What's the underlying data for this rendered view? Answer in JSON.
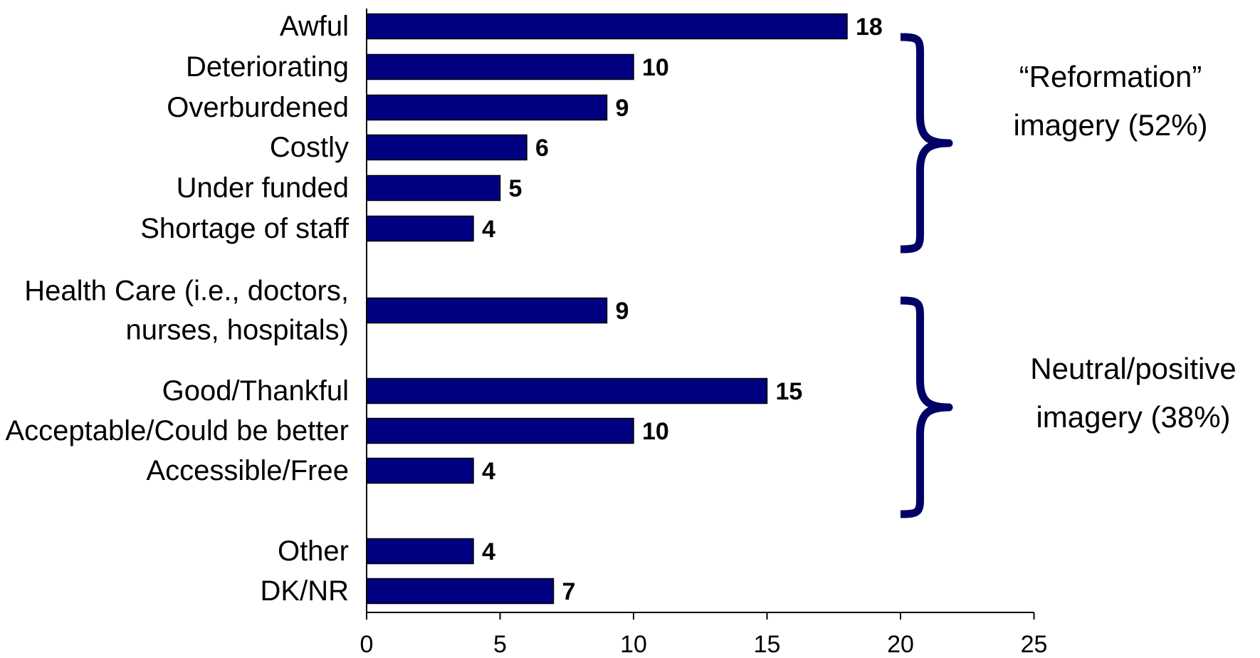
{
  "chart_data": {
    "type": "bar",
    "orientation": "horizontal",
    "categories": [
      [
        "Awful"
      ],
      [
        "Deteriorating"
      ],
      [
        "Overburdened"
      ],
      [
        "Costly"
      ],
      [
        "Under funded"
      ],
      [
        "Shortage of staff"
      ],
      [
        "Health Care (i.e., doctors,",
        "nurses, hospitals)"
      ],
      [
        "Good/Thankful"
      ],
      [
        "Acceptable/Could be better"
      ],
      [
        "Accessible/Free"
      ],
      [
        "Other"
      ],
      [
        "DK/NR"
      ]
    ],
    "values": [
      18,
      10,
      9,
      6,
      5,
      4,
      9,
      15,
      10,
      4,
      4,
      7
    ],
    "xlim": [
      0,
      25
    ],
    "xticks": [
      0,
      5,
      10,
      15,
      20,
      25
    ],
    "bar_color": "#000080",
    "brace_color": "#000066",
    "groups": [
      {
        "label_lines": [
          "“Reformation”",
          "imagery (52%)"
        ],
        "first": 0,
        "last": 5
      },
      {
        "label_lines": [
          "Neutral/positive",
          "imagery (38%)"
        ],
        "first": 6,
        "last": 9
      }
    ],
    "grid": false,
    "legend": "none"
  }
}
